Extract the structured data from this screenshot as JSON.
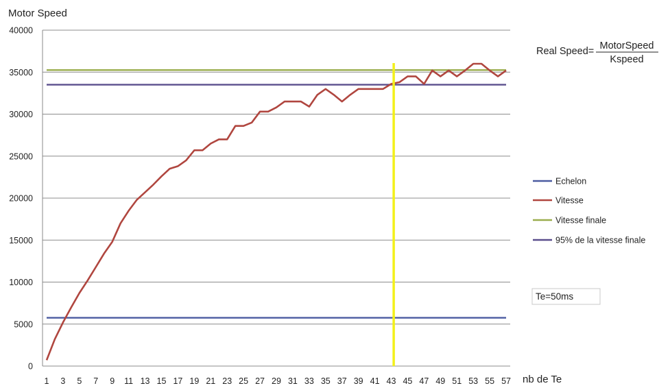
{
  "chart_data": {
    "type": "line",
    "ylabel": "Motor Speed",
    "xlabel": "nb de Te",
    "ylim": [
      0,
      40000
    ],
    "yticks": [
      0,
      5000,
      10000,
      15000,
      20000,
      25000,
      30000,
      35000,
      40000
    ],
    "xticks": [
      1,
      3,
      5,
      7,
      9,
      11,
      13,
      15,
      17,
      19,
      21,
      23,
      25,
      27,
      29,
      31,
      33,
      35,
      37,
      39,
      41,
      43,
      45,
      47,
      49,
      51,
      53,
      55,
      57
    ],
    "grid": "horizontal",
    "legend_position": "right",
    "x": [
      1,
      2,
      3,
      4,
      5,
      6,
      7,
      8,
      9,
      10,
      11,
      12,
      13,
      14,
      15,
      16,
      17,
      18,
      19,
      20,
      21,
      22,
      23,
      24,
      25,
      26,
      27,
      28,
      29,
      30,
      31,
      32,
      33,
      34,
      35,
      36,
      37,
      38,
      39,
      40,
      41,
      42,
      43,
      44,
      45,
      46,
      47,
      48,
      49,
      50,
      51,
      52,
      53,
      54,
      55,
      56,
      57
    ],
    "series": [
      {
        "name": "Echelon",
        "color": "#4a5aa0",
        "values": [
          5750,
          5750,
          5750,
          5750,
          5750,
          5750,
          5750,
          5750,
          5750,
          5750,
          5750,
          5750,
          5750,
          5750,
          5750,
          5750,
          5750,
          5750,
          5750,
          5750,
          5750,
          5750,
          5750,
          5750,
          5750,
          5750,
          5750,
          5750,
          5750,
          5750,
          5750,
          5750,
          5750,
          5750,
          5750,
          5750,
          5750,
          5750,
          5750,
          5750,
          5750,
          5750,
          5750,
          5750,
          5750,
          5750,
          5750,
          5750,
          5750,
          5750,
          5750,
          5750,
          5750,
          5750,
          5750,
          5750,
          5750
        ]
      },
      {
        "name": "Vitesse",
        "color": "#b0463f",
        "values": [
          700,
          3200,
          5200,
          7000,
          8700,
          10200,
          11800,
          13400,
          14800,
          17000,
          18500,
          19800,
          20700,
          21600,
          22600,
          23500,
          23800,
          24500,
          25700,
          25700,
          26500,
          27000,
          27000,
          28600,
          28600,
          29000,
          30300,
          30300,
          30800,
          31500,
          31500,
          31500,
          30900,
          32300,
          33000,
          32300,
          31500,
          32300,
          33000,
          33000,
          33000,
          33000,
          33600,
          33800,
          34500,
          34500,
          33600,
          35200,
          34500,
          35200,
          34500,
          35200,
          36000,
          36000,
          35200,
          34500,
          35200
        ]
      },
      {
        "name": "Vitesse finale",
        "color": "#9aad4d",
        "values": [
          35250,
          35250,
          35250,
          35250,
          35250,
          35250,
          35250,
          35250,
          35250,
          35250,
          35250,
          35250,
          35250,
          35250,
          35250,
          35250,
          35250,
          35250,
          35250,
          35250,
          35250,
          35250,
          35250,
          35250,
          35250,
          35250,
          35250,
          35250,
          35250,
          35250,
          35250,
          35250,
          35250,
          35250,
          35250,
          35250,
          35250,
          35250,
          35250,
          35250,
          35250,
          35250,
          35250,
          35250,
          35250,
          35250,
          35250,
          35250,
          35250,
          35250,
          35250,
          35250,
          35250,
          35250,
          35250,
          35250,
          35250
        ]
      },
      {
        "name": "95% de la vitesse finale",
        "color": "#5a4e8c",
        "values": [
          33500,
          33500,
          33500,
          33500,
          33500,
          33500,
          33500,
          33500,
          33500,
          33500,
          33500,
          33500,
          33500,
          33500,
          33500,
          33500,
          33500,
          33500,
          33500,
          33500,
          33500,
          33500,
          33500,
          33500,
          33500,
          33500,
          33500,
          33500,
          33500,
          33500,
          33500,
          33500,
          33500,
          33500,
          33500,
          33500,
          33500,
          33500,
          33500,
          33500,
          33500,
          33500,
          33500,
          33500,
          33500,
          33500,
          33500,
          33500,
          33500,
          33500,
          33500,
          33500,
          33500,
          33500,
          33500,
          33500,
          33500
        ]
      }
    ],
    "marker_line": {
      "x": 43.3,
      "color": "#f3f01a"
    },
    "annotations": {
      "formula_left": "Real Speed=",
      "formula_numerator": "MotorSpeed",
      "formula_denominator": "Kspeed",
      "te_box": "Te=50ms"
    }
  }
}
